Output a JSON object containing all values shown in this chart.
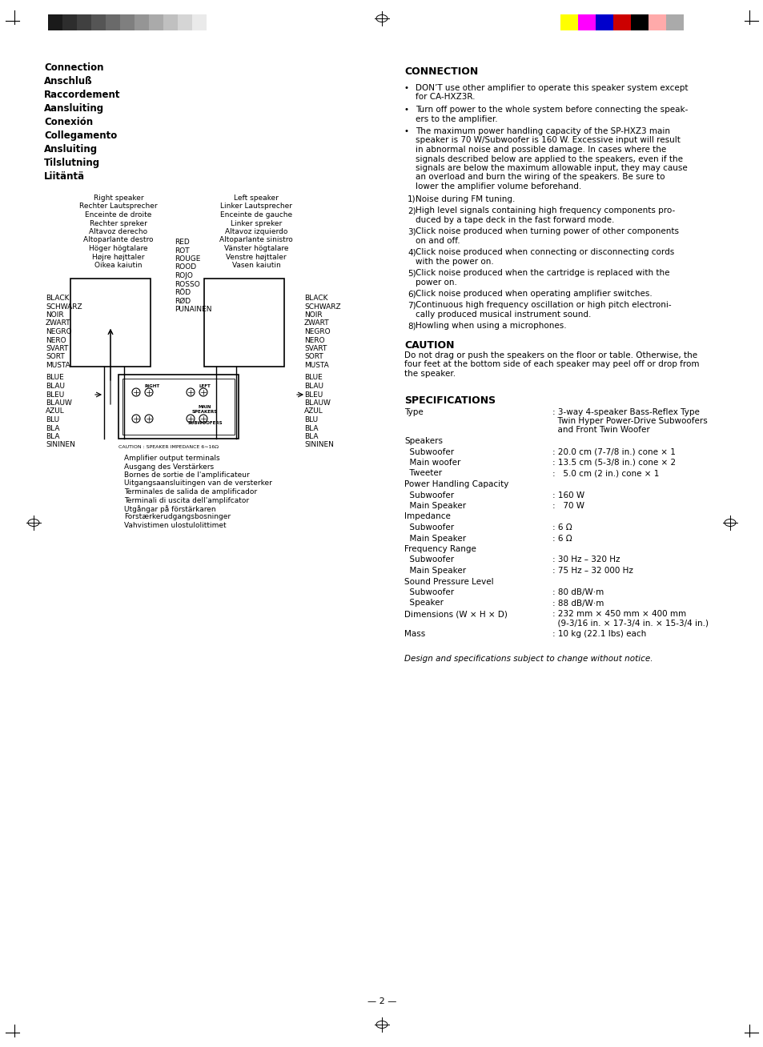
{
  "bg_color": "#ffffff",
  "page_num": "2",
  "left_title_lines": [
    "Connection",
    "Anschluß",
    "Raccordement",
    "Aansluiting",
    "Conexión",
    "Collegamento",
    "Ansluiting",
    "Tilslutning",
    "Liitäntä"
  ],
  "right_speaker_labels": [
    "Right speaker",
    "Rechter Lautsprecher",
    "Enceinte de droite",
    "Rechter spreker",
    "Altavoz derecho",
    "Altoparlante destro",
    "Höger högtalare",
    "Højre højttaler",
    "Oikea kaiutin"
  ],
  "left_speaker_labels": [
    "Left speaker",
    "Linker Lautsprecher",
    "Enceinte de gauche",
    "Linker spreker",
    "Altavoz izquierdo",
    "Altoparlante sinistro",
    "Vänster högtalare",
    "Venstre højttaler",
    "Vasen kaiutin"
  ],
  "red_labels": [
    "RED",
    "ROT",
    "ROUGE",
    "ROOD",
    "ROJO",
    "ROSSO",
    "RÖD",
    "RØD",
    "PUNAINEN"
  ],
  "black_left_labels": [
    "BLACK",
    "SCHWARZ",
    "NOIR",
    "ZWART",
    "NEGRO",
    "NERO",
    "SVART",
    "SORT",
    "MUSTA"
  ],
  "blue_left_labels": [
    "BLUE",
    "BLAU",
    "BLEU",
    "BLAUW",
    "AZUL",
    "BLU",
    "BLA",
    "BLA",
    "SININEN"
  ],
  "black_right_labels": [
    "BLACK",
    "SCHWARZ",
    "NOIR",
    "ZWART",
    "NEGRO",
    "NERO",
    "SVART",
    "SORT",
    "MUSTA"
  ],
  "blue_right_labels": [
    "BLUE",
    "BLAU",
    "BLEU",
    "BLAUW",
    "AZUL",
    "BLU",
    "BLA",
    "BLA",
    "SININEN"
  ],
  "amp_labels": [
    "Amplifier output terminals",
    "Ausgang des Verstärkers",
    "Bornes de sortie de l'amplificateur",
    "Uitgangsaansluitingen van de versterker",
    "Terminales de salida de amplificador",
    "Terminali di uscita dell'amplifcator",
    "Utgångar på förstärkaren",
    "Forstærkerudgangsbosninger",
    "Vahvistimen ulostulolittimet"
  ],
  "caution_impedance": "CAUTION : SPEAKER IMPEDANCE 6∼16Ω",
  "connection_title": "CONNECTION",
  "connection_bullets": [
    "DON’T use other amplifier to operate this speaker system except\nfor CA-HXZ3R.",
    "Turn off power to the whole system before connecting the speak-\ners to the amplifier.",
    "The maximum power handling capacity of the SP-HXZ3 main\nspeaker is 70 W/Subwoofer is 160 W. Excessive input will result\nin abnormal noise and possible damage. In cases where the\nsignals described below are applied to the speakers, even if the\nsignals are below the maximum allowable input, they may cause\nan overload and burn the wiring of the speakers. Be sure to\nlower the amplifier volume beforehand."
  ],
  "connection_numbered": [
    "Noise during FM tuning.",
    "High level signals containing high frequency components pro-\nduced by a tape deck in the fast forward mode.",
    "Click noise produced when turning power of other components\non and off.",
    "Click noise produced when connecting or disconnecting cords\nwith the power on.",
    "Click noise produced when the cartridge is replaced with the\npower on.",
    "Click noise produced when operating amplifier switches.",
    "Continuous high frequency oscillation or high pitch electroni-\ncally produced musical instrument sound.",
    "Howling when using a microphones."
  ],
  "caution_title": "CAUTION",
  "caution_text": "Do not drag or push the speakers on the floor or table. Otherwise, the\nfour feet at the bottom side of each speaker may peel off or drop from\nthe speaker.",
  "specs_title": "SPECIFICATIONS",
  "specs": [
    [
      "Type",
      ": 3-way 4-speaker Bass-Reflex Type\n  Twin Hyper Power-Drive Subwoofers\n  and Front Twin Woofer"
    ],
    [
      "Speakers",
      ""
    ],
    [
      "  Subwoofer",
      ": 20.0 cm (7-7/8 in.) cone × 1"
    ],
    [
      "  Main woofer",
      ": 13.5 cm (5-3/8 in.) cone × 2"
    ],
    [
      "  Tweeter",
      ":   5.0 cm (2 in.) cone × 1"
    ],
    [
      "Power Handling Capacity",
      ""
    ],
    [
      "  Subwoofer",
      ": 160 W"
    ],
    [
      "  Main Speaker",
      ":   70 W"
    ],
    [
      "Impedance",
      ""
    ],
    [
      "  Subwoofer",
      ": 6 Ω"
    ],
    [
      "  Main Speaker",
      ": 6 Ω"
    ],
    [
      "Frequency Range",
      ""
    ],
    [
      "  Subwoofer",
      ": 30 Hz – 320 Hz"
    ],
    [
      "  Main Speaker",
      ": 75 Hz – 32 000 Hz"
    ],
    [
      "Sound Pressure Level",
      ""
    ],
    [
      "  Subwoofer",
      ": 80 dB/W·m"
    ],
    [
      "  Speaker",
      ": 88 dB/W·m"
    ],
    [
      "Dimensions (W × H × D)",
      ": 232 mm × 450 mm × 400 mm\n  (9-3/16 in. × 17-3/4 in. × 15-3/4 in.)"
    ],
    [
      "Mass",
      ": 10 kg (22.1 lbs) each"
    ]
  ],
  "specs_note": "Design and specifications subject to change without notice."
}
